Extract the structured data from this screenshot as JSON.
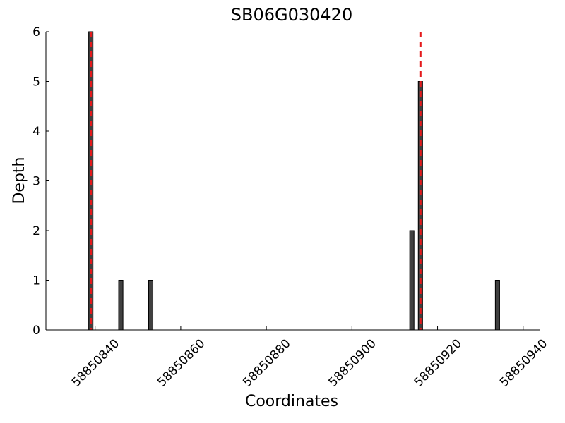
{
  "chart_data": {
    "type": "bar",
    "title": "SB06G030420",
    "x_label": "Coordinates",
    "y_label": "Depth",
    "x": [
      58850839,
      58850846,
      58850853,
      58850914,
      58850916,
      58850934
    ],
    "values": [
      6,
      1,
      1,
      2,
      5,
      1
    ],
    "color": "#404040",
    "edge_color": "#000000",
    "vlines": [
      58850839,
      58850916
    ],
    "vline_color": "#e41a1c",
    "xlim": [
      58850828.5,
      58850944
    ],
    "xticks": [
      58850840,
      58850860,
      58850880,
      58850900,
      58850920,
      58850940
    ],
    "ylim": [
      0,
      6
    ],
    "yticks": [
      0,
      1,
      2,
      3,
      4,
      5,
      6
    ]
  }
}
